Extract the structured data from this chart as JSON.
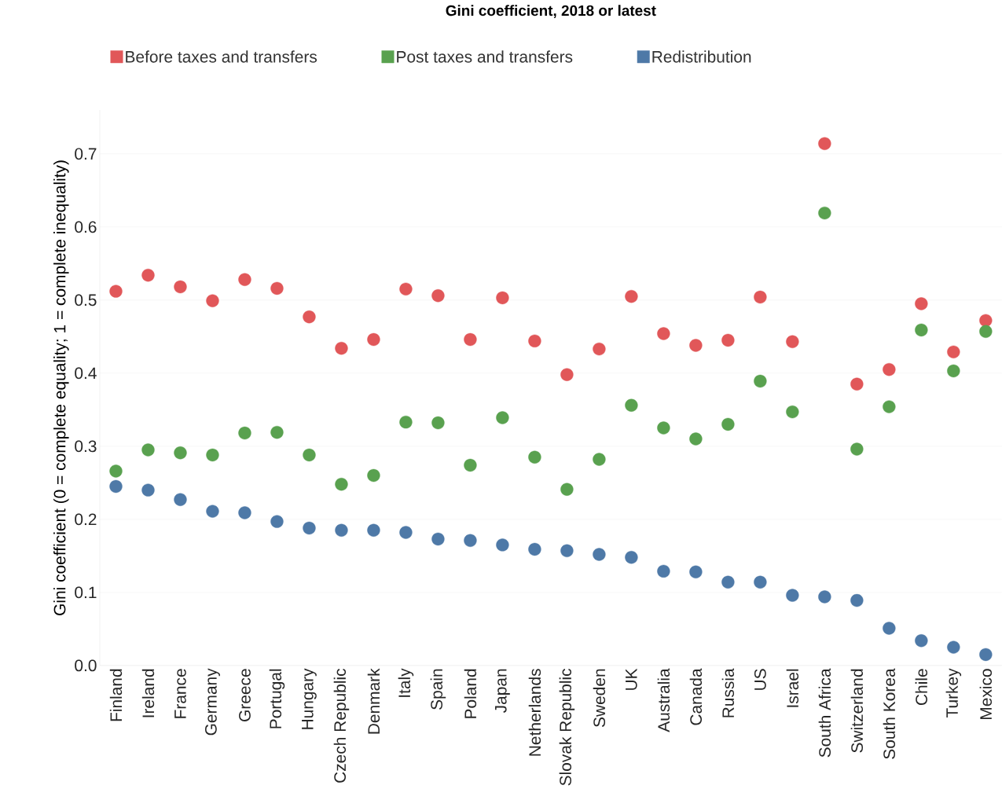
{
  "chart_data": {
    "type": "scatter",
    "title": "**Gini coefficient, 2018 or latest**",
    "ylabel": "Gini coefficient (0 = complete equality; 1 = complete inequality)",
    "categories": [
      "Finland",
      "Ireland",
      "France",
      "Germany",
      "Greece",
      "Portugal",
      "Hungary",
      "Czech Republic",
      "Denmark",
      "Italy",
      "Spain",
      "Poland",
      "Japan",
      "Netherlands",
      "Slovak Republic",
      "Sweden",
      "UK",
      "Australia",
      "Canada",
      "Russia",
      "US",
      "Israel",
      "South Africa",
      "Switzerland",
      "South Korea",
      "Chile",
      "Turkey",
      "Mexico"
    ],
    "series": [
      {
        "name": "Before taxes and transfers",
        "color": "#e15759",
        "values": [
          0.512,
          0.534,
          0.518,
          0.499,
          0.528,
          0.516,
          0.477,
          0.434,
          0.446,
          0.515,
          0.506,
          0.446,
          0.503,
          0.444,
          0.398,
          0.433,
          0.505,
          0.454,
          0.438,
          0.445,
          0.504,
          0.443,
          0.714,
          0.385,
          0.405,
          0.495,
          0.429,
          0.472
        ]
      },
      {
        "name": "Post taxes and transfers",
        "color": "#59a14f",
        "values": [
          0.266,
          0.295,
          0.291,
          0.288,
          0.318,
          0.319,
          0.288,
          0.248,
          0.26,
          0.333,
          0.332,
          0.274,
          0.339,
          0.285,
          0.241,
          0.282,
          0.356,
          0.325,
          0.31,
          0.33,
          0.389,
          0.347,
          0.619,
          0.296,
          0.354,
          0.459,
          0.403,
          0.457
        ]
      },
      {
        "name": "Redistribution",
        "color": "#4e79a7",
        "values": [
          0.245,
          0.24,
          0.227,
          0.211,
          0.209,
          0.197,
          0.188,
          0.185,
          0.185,
          0.182,
          0.173,
          0.171,
          0.165,
          0.159,
          0.157,
          0.152,
          0.148,
          0.129,
          0.128,
          0.114,
          0.114,
          0.096,
          0.094,
          0.089,
          0.051,
          0.034,
          0.025,
          0.015
        ]
      }
    ],
    "ylim": [
      0,
      0.76
    ],
    "yticks": [
      {
        "value": 0,
        "label": "0.0"
      },
      0.1,
      0.2,
      0.3,
      0.4,
      0.5,
      0.6,
      0.7
    ],
    "grid": "y",
    "legend": "top"
  }
}
